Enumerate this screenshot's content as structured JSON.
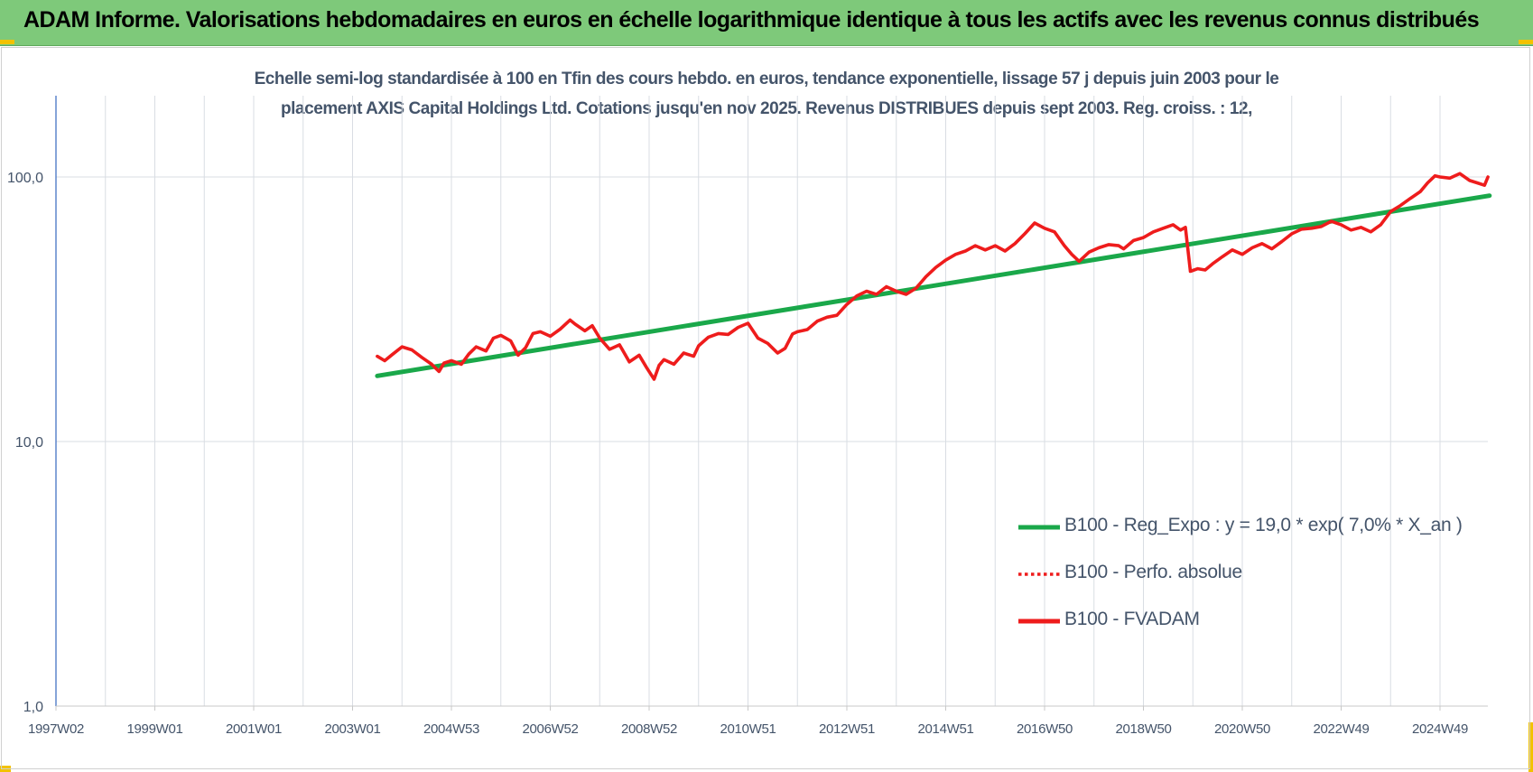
{
  "banner": {
    "title": "ADAM Informe. Valorisations hebdomadaires en euros en échelle logarithmique identique à tous les actifs avec les revenus connus distribués"
  },
  "colors": {
    "banner_bg": "#7ec97a",
    "trend": "#1aa84a",
    "fvadam": "#ee1c1c",
    "perfo": "#ee1c1c",
    "text": "#44546a",
    "grid": "#d9dde3",
    "corner": "#f2c200"
  },
  "chart_data": {
    "type": "line",
    "title_line1": "Echelle semi-log standardisée à 100 en Tfin des cours hebdo. en euros, tendance exponentielle, lissage 57 j depuis juin 2003 pour le",
    "title_line2": "placement AXIS Capital Holdings Ltd. Cotations jusqu'en nov 2025. Revenus DISTRIBUES depuis sept 2003. Reg. croiss. : 12,",
    "y_scale": "log",
    "ylim": [
      1,
      100
    ],
    "y_ticks": [
      {
        "value": 100,
        "label": "100,0"
      },
      {
        "value": 10,
        "label": "10,0"
      },
      {
        "value": 1,
        "label": "1,0"
      }
    ],
    "x_ticks": [
      {
        "year": 1997.0,
        "label": "1997W02"
      },
      {
        "year": 1999.0,
        "label": "1999W01"
      },
      {
        "year": 2001.0,
        "label": "2001W01"
      },
      {
        "year": 2003.0,
        "label": "2003W01"
      },
      {
        "year": 2005.0,
        "label": "2004W53"
      },
      {
        "year": 2007.0,
        "label": "2006W52"
      },
      {
        "year": 2009.0,
        "label": "2008W52"
      },
      {
        "year": 2011.0,
        "label": "2010W51"
      },
      {
        "year": 2013.0,
        "label": "2012W51"
      },
      {
        "year": 2015.0,
        "label": "2014W51"
      },
      {
        "year": 2017.0,
        "label": "2016W50"
      },
      {
        "year": 2019.0,
        "label": "2018W50"
      },
      {
        "year": 2021.0,
        "label": "2020W50"
      },
      {
        "year": 2023.0,
        "label": "2022W49"
      },
      {
        "year": 2025.0,
        "label": "2024W49"
      }
    ],
    "x_range": [
      1997.0,
      2026.0
    ],
    "grid": true,
    "legend_position": "right",
    "legend": [
      {
        "key": "trend",
        "label": "B100 - Reg_Expo : y = 19,0 * exp( 7,0% *  X_an )",
        "style": "solid-green"
      },
      {
        "key": "perfo",
        "label": "B100 - Perfo. absolue",
        "style": "dotted-red"
      },
      {
        "key": "fvadam",
        "label": "B100 - FVADAM",
        "style": "solid-red"
      }
    ],
    "series": [
      {
        "key": "trend",
        "name": "B100 - Reg_Expo : y = 19,0 * exp( 7,0% *  X_an )",
        "x": [
          2003.5,
          2026.0
        ],
        "y": [
          17.7,
          85.0
        ]
      },
      {
        "key": "fvadam",
        "name": "B100 - FVADAM",
        "x": [
          2003.5,
          2003.65,
          2003.8,
          2004.0,
          2004.2,
          2004.4,
          2004.6,
          2004.75,
          2004.85,
          2005.0,
          2005.2,
          2005.35,
          2005.5,
          2005.7,
          2005.85,
          2006.0,
          2006.2,
          2006.35,
          2006.5,
          2006.65,
          2006.8,
          2007.0,
          2007.2,
          2007.4,
          2007.5,
          2007.7,
          2007.85,
          2008.0,
          2008.2,
          2008.4,
          2008.6,
          2008.8,
          2008.95,
          2009.1,
          2009.2,
          2009.3,
          2009.5,
          2009.7,
          2009.9,
          2010.0,
          2010.2,
          2010.4,
          2010.6,
          2010.8,
          2011.0,
          2011.2,
          2011.4,
          2011.6,
          2011.75,
          2011.9,
          2012.0,
          2012.2,
          2012.4,
          2012.6,
          2012.8,
          2013.0,
          2013.2,
          2013.4,
          2013.6,
          2013.8,
          2014.0,
          2014.2,
          2014.4,
          2014.6,
          2014.8,
          2015.0,
          2015.2,
          2015.4,
          2015.6,
          2015.8,
          2016.0,
          2016.2,
          2016.4,
          2016.6,
          2016.8,
          2017.0,
          2017.2,
          2017.4,
          2017.55,
          2017.7,
          2017.9,
          2018.1,
          2018.3,
          2018.5,
          2018.6,
          2018.8,
          2019.0,
          2019.2,
          2019.4,
          2019.6,
          2019.75,
          2019.85,
          2019.95,
          2020.1,
          2020.25,
          2020.4,
          2020.6,
          2020.8,
          2021.0,
          2021.2,
          2021.4,
          2021.6,
          2021.8,
          2022.0,
          2022.2,
          2022.4,
          2022.6,
          2022.8,
          2023.0,
          2023.2,
          2023.4,
          2023.6,
          2023.8,
          2024.0,
          2024.2,
          2024.4,
          2024.6,
          2024.75,
          2024.9,
          2025.0,
          2025.2,
          2025.4,
          2025.6,
          2025.75,
          2025.9,
          2025.97
        ],
        "y": [
          21.0,
          20.2,
          21.3,
          22.8,
          22.2,
          20.8,
          19.6,
          18.4,
          19.8,
          20.2,
          19.6,
          21.4,
          22.8,
          22.0,
          24.6,
          25.2,
          24.0,
          21.2,
          22.6,
          25.6,
          26.0,
          25.0,
          26.6,
          28.8,
          27.8,
          26.2,
          27.4,
          24.6,
          22.3,
          23.2,
          20.0,
          21.2,
          19.0,
          17.2,
          19.4,
          20.4,
          19.6,
          21.6,
          21.0,
          23.0,
          24.8,
          25.6,
          25.4,
          27.0,
          28.0,
          24.6,
          23.5,
          21.6,
          22.5,
          25.5,
          26.0,
          26.5,
          28.5,
          29.5,
          30.0,
          33.0,
          35.5,
          37.0,
          36.0,
          38.5,
          37.0,
          36.0,
          38.0,
          42.0,
          45.5,
          48.5,
          51.0,
          52.5,
          55.0,
          53.0,
          55.0,
          52.5,
          56.0,
          61.0,
          67.0,
          64.0,
          62.0,
          55.0,
          51.0,
          48.0,
          52.0,
          54.0,
          55.5,
          55.0,
          53.5,
          57.5,
          59.0,
          62.0,
          64.0,
          66.0,
          63.0,
          64.5,
          44.0,
          45.0,
          44.5,
          47.0,
          50.0,
          53.0,
          51.0,
          54.0,
          56.0,
          53.5,
          57.0,
          61.0,
          63.5,
          64.0,
          65.0,
          68.0,
          66.0,
          63.0,
          64.5,
          62.0,
          66.0,
          74.0,
          78.0,
          83.0,
          88.0,
          95.0,
          101.0,
          100.0,
          99.0,
          103.0,
          97.0,
          95.0,
          93.0,
          100.0
        ]
      }
    ]
  }
}
